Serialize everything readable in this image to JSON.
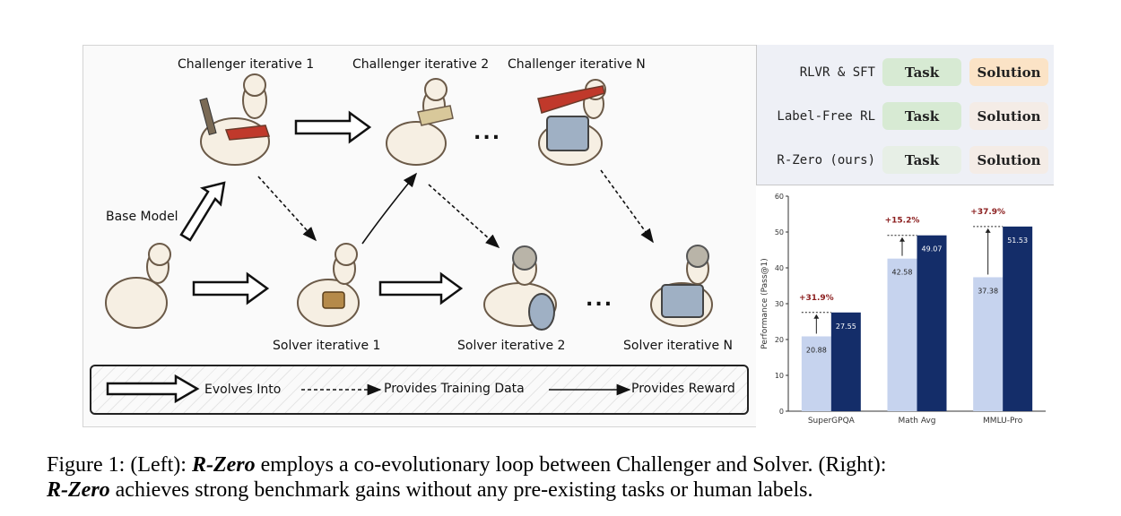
{
  "left_panel": {
    "challenger_labels": [
      "Challenger iterative 1",
      "Challenger iterative 2",
      "Challenger iterative N"
    ],
    "solver_labels": [
      "Solver iterative 1",
      "Solver iterative 2",
      "Solver iterative N"
    ],
    "base_model_label": "Base Model",
    "ellipsis": "...",
    "legend": {
      "evolves_into": "Evolves Into",
      "provides_training_data": "Provides Training Data",
      "provides_reward": "Provides Reward"
    }
  },
  "comparison": {
    "rows": [
      {
        "label": "RLVR & SFT",
        "task": "Task",
        "solution": "Solution",
        "task_color": "#d7ead3",
        "solution_color": "#fbe3c6"
      },
      {
        "label": "Label-Free RL",
        "task": "Task",
        "solution": "Solution",
        "task_color": "#d7ead3",
        "solution_color": "#f4ece6"
      },
      {
        "label": "R-Zero (ours)",
        "task": "Task",
        "solution": "Solution",
        "task_color": "#e7efe6",
        "solution_color": "#f4ece6"
      }
    ]
  },
  "chart_data": {
    "type": "bar",
    "categories": [
      "SuperGPQA",
      "Math Avg",
      "MMLU-Pro"
    ],
    "series": [
      {
        "values": [
          20.88,
          42.58,
          37.38
        ],
        "color": "#c6d3ee"
      },
      {
        "values": [
          27.55,
          49.07,
          51.53
        ],
        "color": "#142d69"
      }
    ],
    "gains": [
      "+31.9%",
      "+15.2%",
      "+37.9%"
    ],
    "ylabel": "Performance (Pass@1)",
    "ylim": [
      0,
      60
    ],
    "yticks": [
      0,
      10,
      20,
      30,
      40,
      50,
      60
    ],
    "gain_color": "#8b1e1e"
  },
  "caption": {
    "line1_prefix": "Figure 1: (Left): ",
    "line1_em": "R-Zero",
    "line1_rest": " employs a co-evolutionary loop between Challenger and Solver. (Right):",
    "line2_em": "R-Zero",
    "line2_rest": " achieves strong benchmark gains without any pre-existing tasks or human labels."
  }
}
